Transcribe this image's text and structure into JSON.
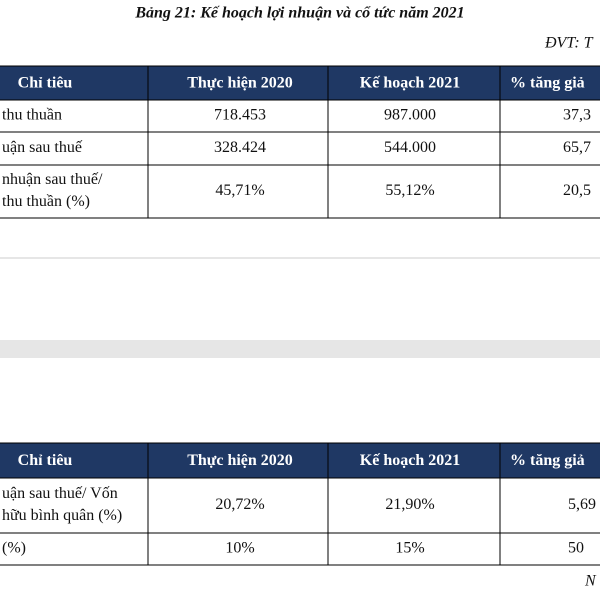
{
  "title": "Bảng 21: Kế hoạch lợi nhuận và cổ tức năm 2021",
  "unit": "ĐVT: T",
  "tables": [
    {
      "header": [
        "Chỉ tiêu",
        "Thực hiện 2020",
        "Kế hoạch 2021",
        "% tăng giả"
      ],
      "rows": [
        {
          "label": [
            "thu thuần"
          ],
          "cells": [
            "718.453",
            "987.000",
            "37,3"
          ]
        },
        {
          "label": [
            "uận sau thuế"
          ],
          "cells": [
            "328.424",
            "544.000",
            "65,7"
          ]
        },
        {
          "label": [
            "nhuận sau thuế/",
            "thu thuần (%)"
          ],
          "cells": [
            "45,71%",
            "55,12%",
            "20,5"
          ]
        }
      ]
    },
    {
      "header": [
        "Chỉ tiêu",
        "Thực hiện 2020",
        "Kế hoạch 2021",
        "% tăng giả"
      ],
      "rows": [
        {
          "label": [
            "uận sau thuế/ Vốn",
            "hữu bình quân (%)"
          ],
          "cells": [
            "20,72%",
            "21,90%",
            "5,69"
          ]
        },
        {
          "label": [
            "(%)"
          ],
          "cells": [
            "10%",
            "15%",
            "50"
          ]
        }
      ]
    }
  ],
  "footer": "N"
}
